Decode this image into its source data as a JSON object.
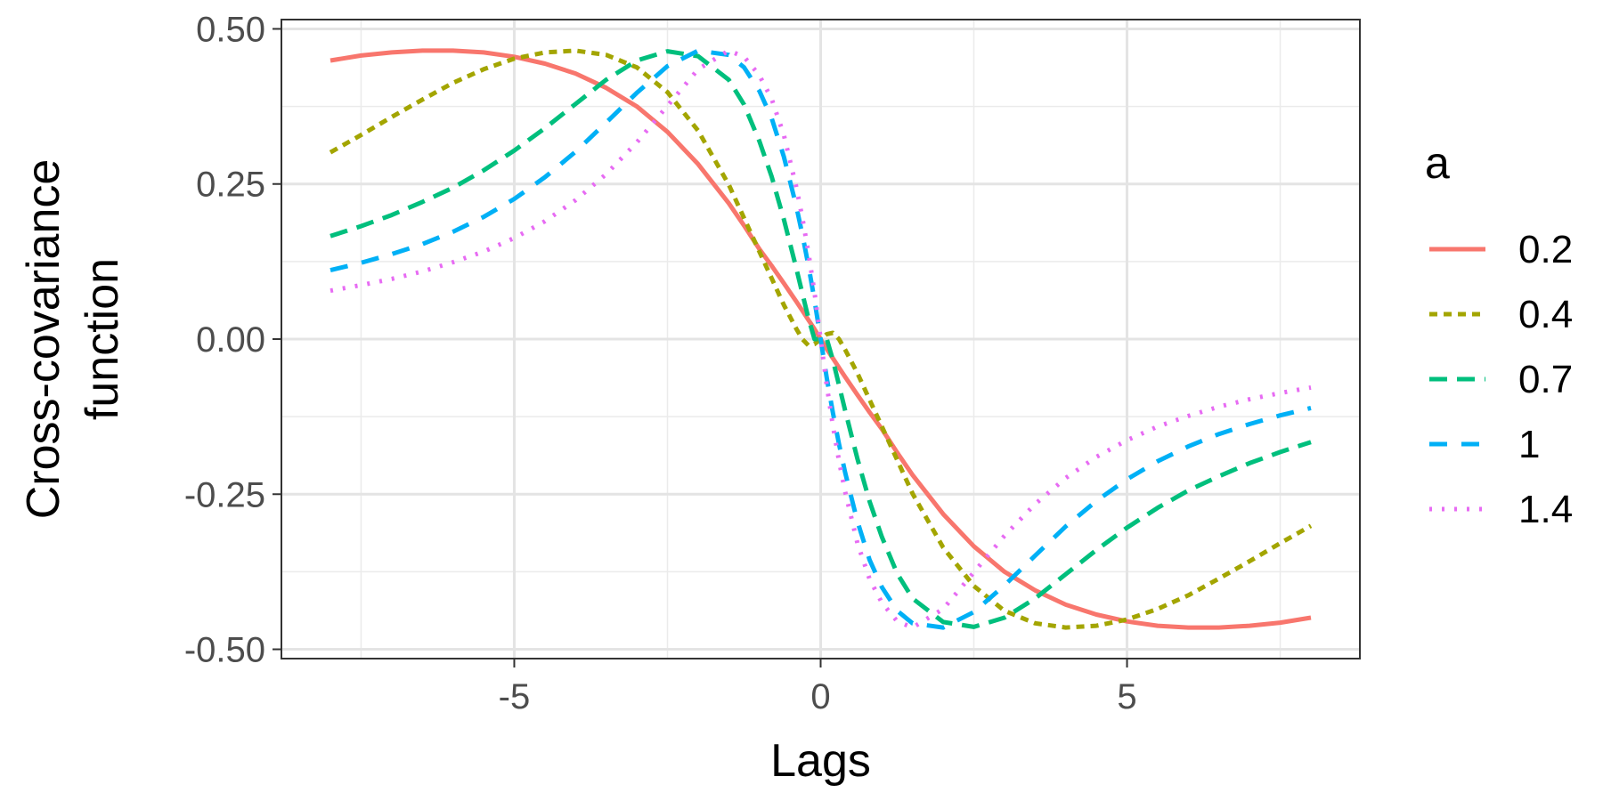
{
  "chart_data": {
    "type": "line",
    "xlabel": "Lags",
    "ylabel": [
      "Cross-covariance",
      "function"
    ],
    "xlim": [
      -8,
      8
    ],
    "ylim": [
      -0.5,
      0.5
    ],
    "x_ticks": [
      -5,
      0,
      5
    ],
    "x_tick_labels": [
      "-5",
      "0",
      "5"
    ],
    "y_ticks": [
      -0.5,
      -0.25,
      0,
      0.25,
      0.5
    ],
    "y_tick_labels": [
      "-0.50",
      "-0.25",
      "0.00",
      "0.25",
      "0.50"
    ],
    "grid": true,
    "legend": {
      "title": "a",
      "position": "right"
    },
    "x": [
      -8,
      -7.5,
      -7,
      -6.5,
      -6,
      -5.5,
      -5,
      -4.5,
      -4,
      -3.5,
      -3,
      -2.5,
      -2,
      -1.5,
      -1.25,
      -1,
      -0.8,
      -0.6,
      -0.4,
      -0.3,
      -0.2,
      -0.1,
      0,
      0.1,
      0.2,
      0.3,
      0.4,
      0.6,
      0.8,
      1,
      1.25,
      1.5,
      2,
      2.5,
      3,
      3.5,
      4,
      4.5,
      5,
      5.5,
      6,
      6.5,
      7,
      7.5,
      8
    ],
    "series": [
      {
        "name": "0.2",
        "color": "#F8766D",
        "dash": "solid",
        "values": [
          0.449,
          0.457,
          0.462,
          0.465,
          0.465,
          0.462,
          0.455,
          0.444,
          0.428,
          0.405,
          0.375,
          0.334,
          0.282,
          0.219,
          0.183,
          0.145,
          0.118,
          0.09,
          0.061,
          0.046,
          0.031,
          0.016,
          0,
          -0.016,
          -0.031,
          -0.046,
          -0.061,
          -0.09,
          -0.118,
          -0.145,
          -0.183,
          -0.219,
          -0.282,
          -0.334,
          -0.375,
          -0.405,
          -0.428,
          -0.444,
          -0.455,
          -0.462,
          -0.465,
          -0.465,
          -0.462,
          -0.457,
          -0.449
        ]
      },
      {
        "name": "0.4",
        "color": "#A3A500",
        "dash": "short",
        "values": [
          0.301,
          0.329,
          0.358,
          0.386,
          0.413,
          0.435,
          0.452,
          0.462,
          0.465,
          0.458,
          0.438,
          0.398,
          0.336,
          0.249,
          0.195,
          0.141,
          0.098,
          0.055,
          0.017,
          0,
          -0.01,
          -0.008,
          0,
          0.008,
          0.01,
          0,
          -0.017,
          -0.055,
          -0.098,
          -0.141,
          -0.195,
          -0.249,
          -0.336,
          -0.398,
          -0.438,
          -0.458,
          -0.465,
          -0.462,
          -0.452,
          -0.435,
          -0.413,
          -0.386,
          -0.358,
          -0.329,
          -0.301
        ]
      },
      {
        "name": "0.7",
        "color": "#00BF7D",
        "dash": "long",
        "values": [
          0.166,
          0.182,
          0.2,
          0.221,
          0.244,
          0.272,
          0.304,
          0.34,
          0.379,
          0.418,
          0.449,
          0.464,
          0.456,
          0.418,
          0.378,
          0.319,
          0.262,
          0.193,
          0.115,
          0.074,
          0.034,
          0,
          0,
          0,
          -0.034,
          -0.074,
          -0.115,
          -0.193,
          -0.262,
          -0.319,
          -0.378,
          -0.418,
          -0.456,
          -0.464,
          -0.449,
          -0.418,
          -0.379,
          -0.34,
          -0.304,
          -0.272,
          -0.244,
          -0.221,
          -0.2,
          -0.182,
          -0.166
        ]
      },
      {
        "name": "1",
        "color": "#00B0F6",
        "dash": "long-gap",
        "values": [
          0.111,
          0.123,
          0.137,
          0.153,
          0.173,
          0.197,
          0.226,
          0.261,
          0.302,
          0.349,
          0.397,
          0.44,
          0.465,
          0.458,
          0.438,
          0.4,
          0.356,
          0.294,
          0.215,
          0.169,
          0.119,
          0.063,
          0,
          -0.063,
          -0.119,
          -0.169,
          -0.215,
          -0.294,
          -0.356,
          -0.4,
          -0.438,
          -0.458,
          -0.465,
          -0.44,
          -0.397,
          -0.349,
          -0.302,
          -0.261,
          -0.226,
          -0.197,
          -0.173,
          -0.153,
          -0.137,
          -0.123,
          -0.111
        ]
      },
      {
        "name": "1.4",
        "color": "#E76BF3",
        "dash": "dot",
        "values": [
          0.078,
          0.087,
          0.097,
          0.109,
          0.124,
          0.141,
          0.163,
          0.19,
          0.224,
          0.266,
          0.317,
          0.376,
          0.435,
          0.465,
          0.455,
          0.425,
          0.387,
          0.329,
          0.246,
          0.196,
          0.14,
          0.075,
          0,
          -0.075,
          -0.14,
          -0.196,
          -0.246,
          -0.329,
          -0.387,
          -0.425,
          -0.455,
          -0.465,
          -0.435,
          -0.376,
          -0.317,
          -0.266,
          -0.224,
          -0.19,
          -0.163,
          -0.141,
          -0.124,
          -0.109,
          -0.097,
          -0.087,
          -0.078
        ]
      }
    ]
  }
}
